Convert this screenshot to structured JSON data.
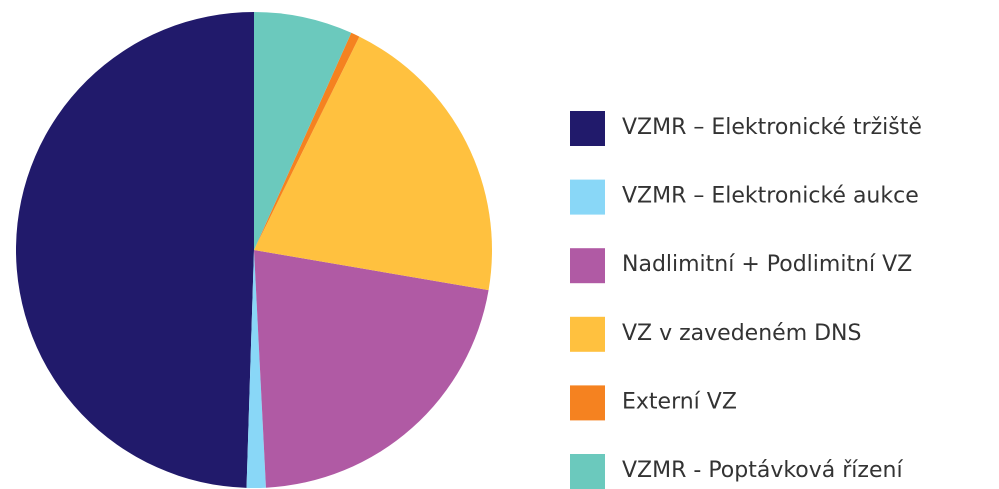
{
  "chart_data": {
    "type": "pie",
    "categories": [
      "VZMR – Elektronické tržiště",
      "VZMR – Elektronické aukce",
      "Nadlimitní + Podlimitní VZ",
      "VZ v zavedeném DNS",
      "Externí VZ",
      "VZMR - Poptávková řízení"
    ],
    "values": [
      49.5,
      1.3,
      21.5,
      20.4,
      0.6,
      6.7
    ],
    "colors": [
      "#211a6b",
      "#89d7f7",
      "#b05aa4",
      "#ffc13f",
      "#f58220",
      "#6bc9bd"
    ],
    "legend": "right"
  }
}
